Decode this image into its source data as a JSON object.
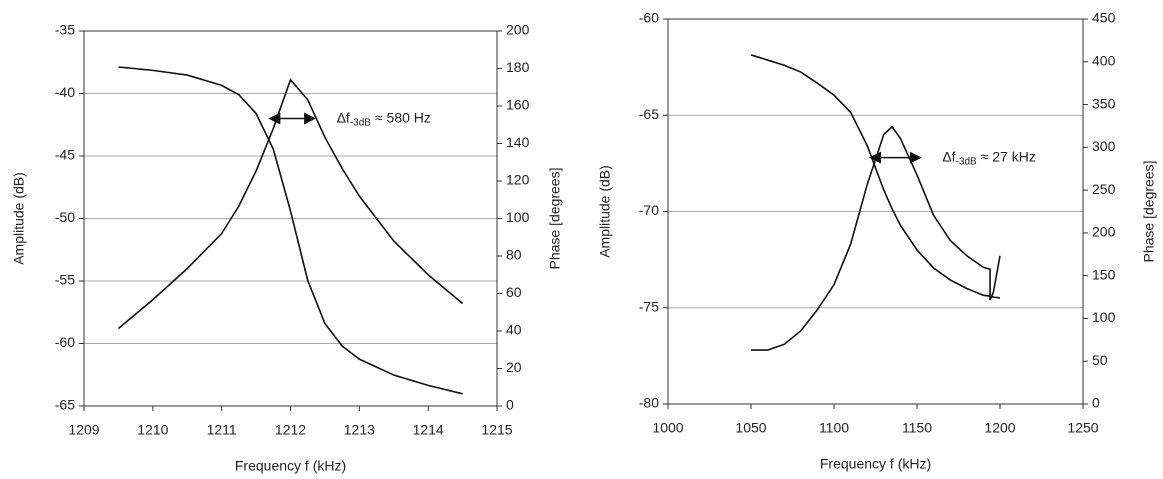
{
  "chart_data": [
    {
      "type": "line",
      "xlabel": "Frequency f (kHz)",
      "ylabel": "Amplitude (dB)",
      "y2label": "Phase [degrees]",
      "x": [
        1209.5,
        1210,
        1210.5,
        1211,
        1211.25,
        1211.5,
        1211.75,
        1212,
        1212.25,
        1212.5,
        1212.75,
        1213,
        1213.5,
        1214,
        1214.5
      ],
      "series": [
        {
          "color": "#111111",
          "values": [
            -58.8,
            -56.5,
            -54.0,
            -51.2,
            -49.0,
            -46.2,
            -42.8,
            -38.9,
            -40.5,
            -43.5,
            -46.0,
            -48.2,
            -51.8,
            -54.5,
            -56.8
          ]
        },
        {
          "color": "#111111",
          "axis": "y2",
          "values": [
            180.8,
            179,
            176.5,
            171,
            166,
            156,
            137,
            104,
            67,
            44,
            32,
            25,
            16.5,
            11,
            6.5
          ]
        }
      ],
      "xlim": [
        1209,
        1215
      ],
      "xticks": [
        1209,
        1210,
        1211,
        1212,
        1213,
        1214,
        1215
      ],
      "ylim": [
        -65,
        -35
      ],
      "yticks": [
        -65,
        -60,
        -55,
        -50,
        -45,
        -40,
        -35
      ],
      "y2lim": [
        0,
        200
      ],
      "y2ticks": [
        0,
        20,
        40,
        60,
        80,
        100,
        120,
        140,
        160,
        180,
        200
      ],
      "grid": true,
      "annotation": {
        "text": "Δf",
        "subscript": "-3dB",
        "suffix": "≈ 580 Hz",
        "x": [
          1211.7,
          1212.35
        ],
        "y": -42
      }
    },
    {
      "type": "line",
      "xlabel": "Frequency f (kHz)",
      "ylabel": "Amplitude (dB)",
      "y2label": "Phase [degrees]",
      "x": [
        1050,
        1060,
        1070,
        1080,
        1090,
        1100,
        1110,
        1120,
        1130,
        1135,
        1140,
        1150,
        1160,
        1170,
        1180,
        1190,
        1194,
        1194,
        1196,
        1200
      ],
      "series": [
        {
          "color": "#111111",
          "values": [
            -77.2,
            -77.2,
            -76.9,
            -76.2,
            -75.1,
            -73.8,
            -71.7,
            -68.6,
            -66.0,
            -65.6,
            -66.2,
            -68.1,
            -70.2,
            -71.5,
            -72.3,
            -72.9,
            -73.0,
            -74.6,
            -74.2,
            -72.3
          ]
        },
        {
          "color": "#111111",
          "axis": "y2",
          "values": [
            408,
            402,
            396,
            388,
            375,
            361,
            341,
            302,
            250,
            228,
            209,
            180,
            159,
            145,
            135,
            127,
            126,
            126,
            125,
            124
          ]
        }
      ],
      "xlim": [
        1000,
        1250
      ],
      "xticks": [
        1000,
        1050,
        1100,
        1150,
        1200,
        1250
      ],
      "ylim": [
        -80,
        -60
      ],
      "yticks": [
        -80,
        -75,
        -70,
        -65,
        -60
      ],
      "y2lim": [
        0,
        450
      ],
      "y2ticks": [
        0,
        50,
        100,
        150,
        200,
        250,
        300,
        350,
        400,
        450
      ],
      "grid": true,
      "annotation": {
        "text": "Δf",
        "subscript": "-3dB",
        "suffix": "≈ 27 kHz",
        "x": [
          1122,
          1152
        ],
        "y": -67.2
      }
    }
  ]
}
